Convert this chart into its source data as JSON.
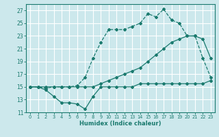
{
  "title": "",
  "xlabel": "Humidex (Indice chaleur)",
  "bg_color": "#cce8ec",
  "grid_color": "#ffffff",
  "line_color": "#1a7a6e",
  "xlim": [
    -0.5,
    23.5
  ],
  "ylim": [
    11,
    28
  ],
  "yticks": [
    11,
    13,
    15,
    17,
    19,
    21,
    23,
    25,
    27
  ],
  "xticks": [
    0,
    1,
    2,
    3,
    4,
    5,
    6,
    7,
    8,
    9,
    10,
    11,
    12,
    13,
    14,
    15,
    16,
    17,
    18,
    19,
    20,
    21,
    22,
    23
  ],
  "series1_x": [
    0,
    1,
    2,
    3,
    4,
    5,
    6,
    7,
    8,
    9,
    10,
    11,
    12,
    13,
    14,
    15,
    16,
    17,
    18,
    19,
    20,
    21,
    22,
    23
  ],
  "series1_y": [
    15,
    15,
    14.8,
    15,
    15,
    15,
    15.2,
    16.5,
    19.5,
    22,
    24,
    24,
    24,
    24.5,
    25,
    26.5,
    26,
    27.2,
    25.5,
    25,
    23,
    23,
    19.5,
    16.5
  ],
  "series2_x": [
    0,
    1,
    2,
    3,
    4,
    5,
    6,
    7,
    8,
    9,
    10,
    11,
    12,
    13,
    14,
    15,
    16,
    17,
    18,
    19,
    20,
    21,
    22,
    23
  ],
  "series2_y": [
    15,
    15,
    15,
    15,
    15,
    15,
    15,
    15,
    15,
    15.5,
    16,
    16.5,
    17,
    17.5,
    18,
    19,
    20,
    21,
    22,
    22.5,
    23,
    23,
    22.5,
    19.5
  ],
  "series3_x": [
    0,
    1,
    2,
    3,
    4,
    5,
    6,
    7,
    8,
    9,
    10,
    11,
    12,
    13,
    14,
    15,
    16,
    17,
    18,
    19,
    20,
    21,
    22,
    23
  ],
  "series3_y": [
    15,
    15,
    14.5,
    13.5,
    12.5,
    12.5,
    12.3,
    11.5,
    13.5,
    15,
    15,
    15,
    15,
    15,
    15.5,
    15.5,
    15.5,
    15.5,
    15.5,
    15.5,
    15.5,
    15.5,
    15.5,
    16
  ]
}
